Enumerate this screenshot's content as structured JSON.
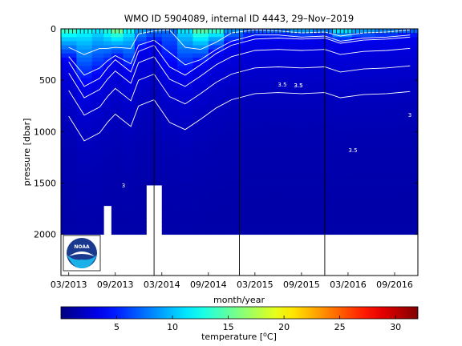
{
  "chart_data": {
    "type": "heatmap",
    "title": "WMO ID 5904089, internal ID 4443, 29–Nov–2019",
    "xlabel": "month/year",
    "ylabel": "pressure [dbar]",
    "x_tick_labels": [
      "03/2013",
      "09/2013",
      "03/2014",
      "09/2014",
      "03/2015",
      "09/2015",
      "03/2016",
      "09/2016"
    ],
    "y_tick_values": [
      0,
      500,
      1000,
      1500,
      2000
    ],
    "ylim": [
      0,
      2400
    ],
    "y_reversed": true,
    "xlim": [
      "2013-02",
      "2016-12"
    ],
    "grid": false,
    "variable": "temperature",
    "colorbar": {
      "label_prefix": "temperature [",
      "label_unit_sup": "o",
      "label_unit": "C]",
      "ticks": [
        5,
        10,
        15,
        20,
        25,
        30
      ],
      "range": [
        0,
        32
      ],
      "colormap": "jet"
    },
    "data_depth_max_dbar": 2000,
    "isotherm_labels": [
      "3",
      "3.5",
      "3.5",
      "3.5",
      "3",
      "3.5"
    ],
    "vertical_markers": [
      "2014-02",
      "2015-01",
      "2015-12"
    ],
    "profiles": [
      {
        "date": "2013-03",
        "t_surface": 15,
        "d_warm_dbar": 320,
        "gap_from_dbar": null
      },
      {
        "date": "2013-05",
        "t_surface": 13,
        "d_warm_dbar": 560,
        "gap_from_dbar": null
      },
      {
        "date": "2013-07",
        "t_surface": 12,
        "d_warm_dbar": 480,
        "gap_from_dbar": null
      },
      {
        "date": "2013-08",
        "t_surface": 14,
        "d_warm_dbar": 380,
        "gap_from_dbar": 1700
      },
      {
        "date": "2013-09",
        "t_surface": 17,
        "d_warm_dbar": 300,
        "gap_from_dbar": null
      },
      {
        "date": "2013-11",
        "t_surface": 13,
        "d_warm_dbar": 420,
        "gap_from_dbar": null
      },
      {
        "date": "2013-12",
        "t_surface": 10,
        "d_warm_dbar": 220,
        "gap_from_dbar": null
      },
      {
        "date": "2014-02",
        "t_surface": 9,
        "d_warm_dbar": 160,
        "gap_from_dbar": 1500
      },
      {
        "date": "2014-04",
        "t_surface": 8,
        "d_warm_dbar": 380,
        "gap_from_dbar": null
      },
      {
        "date": "2014-06",
        "t_surface": 12,
        "d_warm_dbar": 450,
        "gap_from_dbar": null
      },
      {
        "date": "2014-08",
        "t_surface": 16,
        "d_warm_dbar": 350,
        "gap_from_dbar": null
      },
      {
        "date": "2014-10",
        "t_surface": 15,
        "d_warm_dbar": 240,
        "gap_from_dbar": null
      },
      {
        "date": "2014-12",
        "t_surface": 10,
        "d_warm_dbar": 160,
        "gap_from_dbar": null
      },
      {
        "date": "2015-03",
        "t_surface": 8,
        "d_warm_dbar": 100,
        "gap_from_dbar": null
      },
      {
        "date": "2015-06",
        "t_surface": 9,
        "d_warm_dbar": 90,
        "gap_from_dbar": null
      },
      {
        "date": "2015-09",
        "t_surface": 11,
        "d_warm_dbar": 100,
        "gap_from_dbar": null
      },
      {
        "date": "2015-12",
        "t_surface": 10,
        "d_warm_dbar": 90,
        "gap_from_dbar": null
      },
      {
        "date": "2016-02",
        "t_surface": 13,
        "d_warm_dbar": 140,
        "gap_from_dbar": null
      },
      {
        "date": "2016-05",
        "t_surface": 11,
        "d_warm_dbar": 110,
        "gap_from_dbar": null
      },
      {
        "date": "2016-08",
        "t_surface": 10,
        "d_warm_dbar": 100,
        "gap_from_dbar": null
      },
      {
        "date": "2016-11",
        "t_surface": 9,
        "d_warm_dbar": 80,
        "gap_from_dbar": null
      }
    ]
  }
}
